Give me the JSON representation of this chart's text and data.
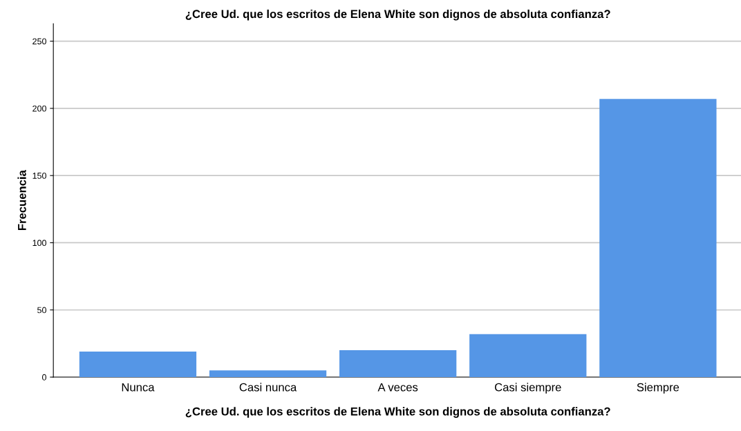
{
  "chart_data": {
    "type": "bar",
    "title": "¿Cree Ud. que los escritos de Elena White son dignos de absoluta confianza?",
    "xlabel": "¿Cree Ud. que los escritos de Elena White son dignos de absoluta confianza?",
    "ylabel": "Frecuencia",
    "categories": [
      "Nunca",
      "Casi nunca",
      "A veces",
      "Casi siempre",
      "Siempre"
    ],
    "values": [
      19,
      5,
      20,
      32,
      207
    ],
    "color": "#5596e6",
    "ylim": [
      0,
      263
    ],
    "yticks": [
      0,
      50,
      100,
      150,
      200,
      250
    ],
    "grid": "y"
  }
}
